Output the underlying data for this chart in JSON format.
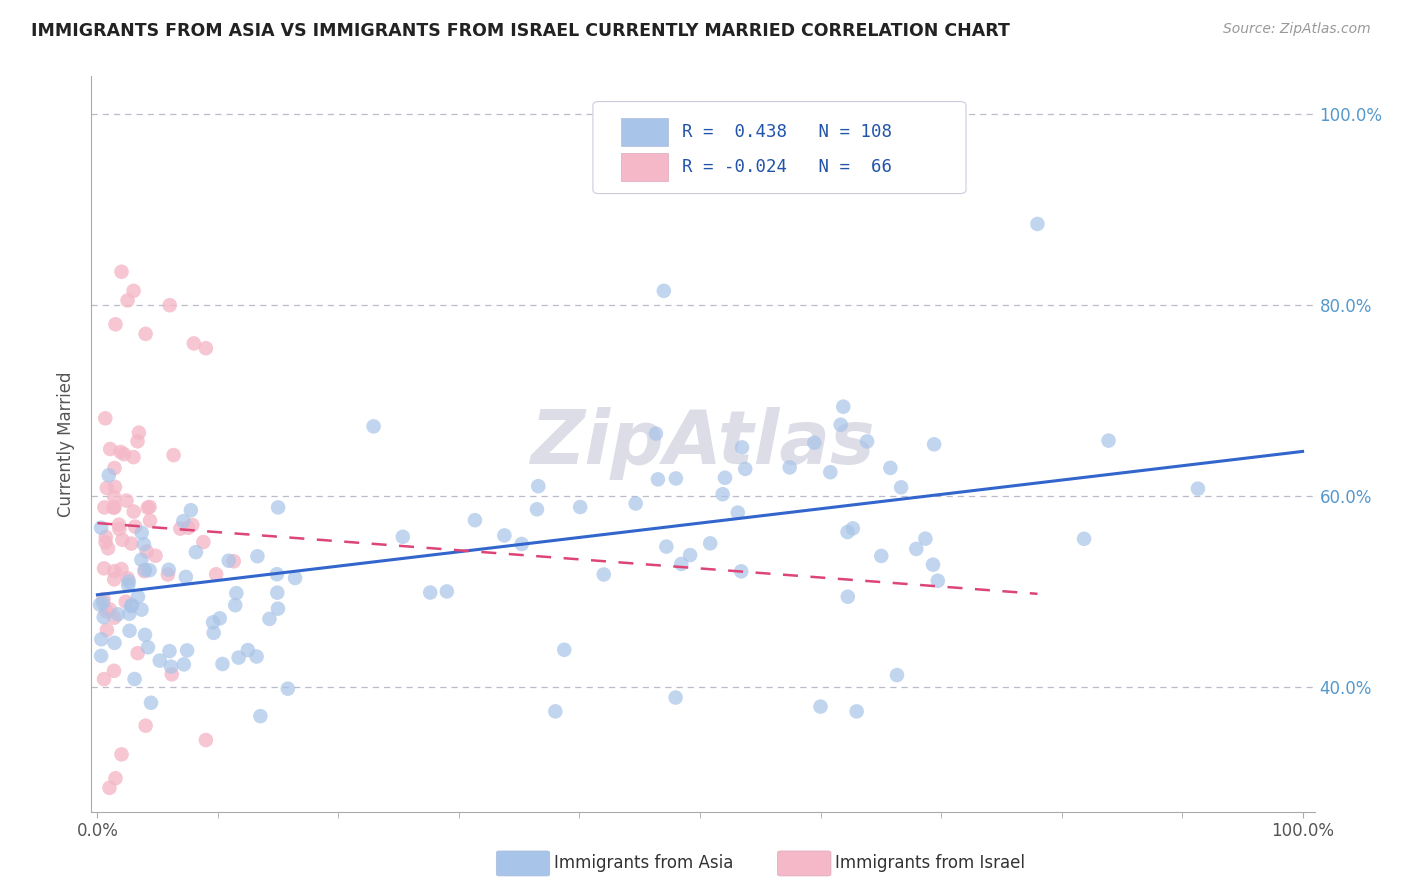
{
  "title": "IMMIGRANTS FROM ASIA VS IMMIGRANTS FROM ISRAEL CURRENTLY MARRIED CORRELATION CHART",
  "source_text": "Source: ZipAtlas.com",
  "ylabel": "Currently Married",
  "blue_color": "#A8C4E8",
  "pink_color": "#F4B8C8",
  "blue_line_color": "#3366CC",
  "pink_line_color": "#DD4477",
  "background_color": "#FFFFFF",
  "grid_color": "#BBBBCC",
  "watermark_color": "#DDDDE8",
  "right_tick_color": "#5599CC",
  "asia_N": 108,
  "israel_N": 66,
  "asia_R": 0.438,
  "israel_R": -0.024,
  "blue_line_y0": 0.497,
  "blue_line_y1": 0.647,
  "pink_line_y0": 0.572,
  "pink_line_y1": 0.498,
  "pink_line_x1": 0.78,
  "ylim_low": 0.27,
  "ylim_high": 1.04,
  "xlim_low": -0.005,
  "xlim_high": 1.01,
  "yticks": [
    0.4,
    0.6,
    0.8,
    1.0
  ],
  "ytick_labels": [
    "40.0%",
    "60.0%",
    "80.0%",
    "100.0%"
  ],
  "xtick_labels": [
    "0.0%",
    "100.0%"
  ]
}
